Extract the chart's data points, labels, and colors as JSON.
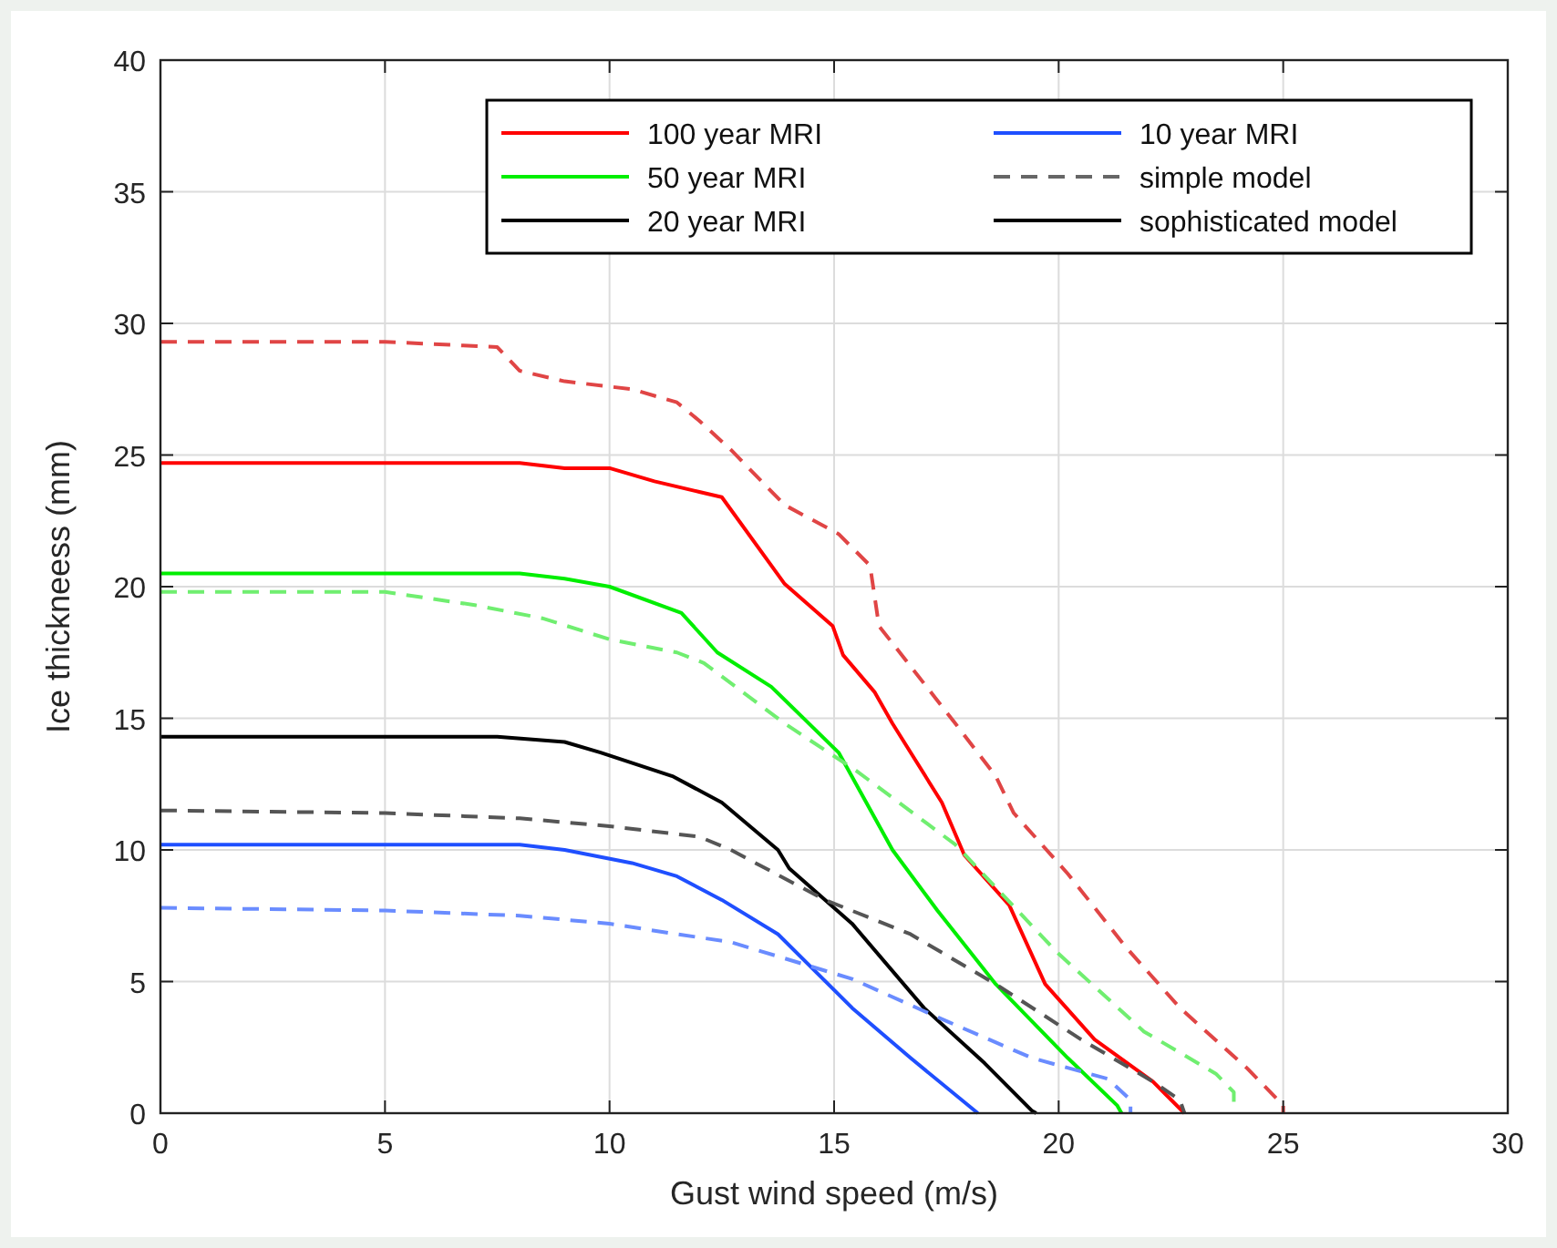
{
  "chart_data": {
    "type": "line",
    "xlabel": "Gust wind speed (m/s)",
    "ylabel": "Ice thickneess (mm)",
    "xlim": [
      0,
      30
    ],
    "xticks": [
      0,
      5,
      10,
      15,
      20,
      25,
      30
    ],
    "ylim": [
      0,
      40
    ],
    "yticks": [
      0,
      5,
      10,
      15,
      20,
      25,
      30,
      35,
      40
    ],
    "grid": true,
    "legend": "top right",
    "marker": "none",
    "series": [
      {
        "name": "100 year MRI",
        "color": "#ff0000",
        "line_style": "solid",
        "x": [
          0,
          5,
          8,
          9,
          10,
          11,
          12,
          12.5,
          13.9,
          14.97,
          15.2,
          15.9,
          16.3,
          17.4,
          17.9,
          18.9,
          19.7,
          20.8,
          22.1,
          22.8
        ],
        "values": [
          24.7,
          24.7,
          24.7,
          24.5,
          24.5,
          24,
          23.6,
          23.4,
          20.1,
          18.5,
          17.4,
          16,
          14.8,
          11.8,
          9.8,
          7.9,
          4.9,
          2.8,
          1.2,
          0
        ]
      },
      {
        "name": "50 year MRI",
        "color": "#00ee00",
        "line_style": "solid",
        "x": [
          0,
          5,
          8,
          9,
          10,
          11.6,
          12.4,
          13.6,
          15.1,
          16.3,
          17.3,
          18.6,
          20.2,
          21.3,
          21.4
        ],
        "values": [
          20.5,
          20.5,
          20.5,
          20.3,
          20,
          19,
          17.5,
          16.2,
          13.7,
          10,
          7.7,
          4.9,
          2.1,
          0.3,
          0
        ]
      },
      {
        "name": "20 year MRI",
        "color": "#000000",
        "line_style": "solid",
        "x": [
          0,
          5,
          7.5,
          9,
          9.8,
          11.4,
          12.5,
          13.75,
          14,
          15.4,
          17,
          18.35,
          19.4,
          19.5
        ],
        "values": [
          14.3,
          14.3,
          14.3,
          14.1,
          13.7,
          12.8,
          11.8,
          10,
          9.3,
          7.2,
          4,
          1.9,
          0.1,
          0
        ]
      },
      {
        "name": "10 year MRI",
        "color": "#1f4fff",
        "line_style": "solid",
        "x": [
          0,
          5,
          8,
          9,
          10.5,
          11.5,
          12.5,
          13.75,
          15.4,
          16.7,
          18.2
        ],
        "values": [
          10.2,
          10.2,
          10.2,
          10,
          9.5,
          9,
          8.1,
          6.8,
          4,
          2.1,
          0
        ]
      },
      {
        "color": "#e04545",
        "line_style": "dashed",
        "x": [
          0,
          5,
          7.5,
          8,
          9,
          10.5,
          11.5,
          12,
          12.7,
          13.9,
          15.1,
          15.8,
          16,
          16.6,
          17.7,
          18.6,
          19,
          20.2,
          21.5,
          22.7,
          24.2,
          25,
          25
        ],
        "values": [
          29.3,
          29.3,
          29.1,
          28.2,
          27.8,
          27.5,
          27,
          26.3,
          25.2,
          23.1,
          22,
          20.8,
          18.5,
          17.2,
          14.8,
          12.8,
          11.4,
          9.1,
          6.3,
          4,
          1.7,
          0.3,
          0
        ]
      },
      {
        "color": "#70ee70",
        "line_style": "dashed",
        "x": [
          0,
          5,
          7,
          8.5,
          10,
          11.5,
          12.1,
          13.9,
          15.5,
          17.7,
          19.97,
          21.9,
          23.5,
          23.9,
          23.9
        ],
        "values": [
          19.8,
          19.8,
          19.3,
          18.8,
          18,
          17.5,
          17.1,
          14.8,
          13,
          10.2,
          6.1,
          3.1,
          1.5,
          0.8,
          0
        ]
      },
      {
        "color": "#555555",
        "line_style": "dashed",
        "x": [
          0,
          5,
          8,
          10,
          12,
          12.7,
          14.8,
          16.7,
          18.6,
          20.5,
          22.1,
          22.7,
          22.8
        ],
        "values": [
          11.5,
          11.4,
          11.2,
          10.9,
          10.5,
          10,
          8.1,
          6.8,
          4.9,
          2.8,
          1.2,
          0.5,
          0
        ]
      },
      {
        "color": "#6a8cff",
        "line_style": "dashed",
        "x": [
          0,
          5,
          8,
          10,
          11.5,
          12.7,
          15.4,
          17.5,
          19.4,
          21.1,
          21.6,
          21.6
        ],
        "values": [
          7.8,
          7.7,
          7.5,
          7.2,
          6.8,
          6.5,
          5.1,
          3.5,
          2.1,
          1.3,
          0.5,
          0
        ]
      },
      {
        "name": "simple model",
        "color": "#666666",
        "line_style": "dashed"
      },
      {
        "name": "sophisticated model",
        "color": "#000000",
        "line_style": "solid"
      }
    ]
  }
}
